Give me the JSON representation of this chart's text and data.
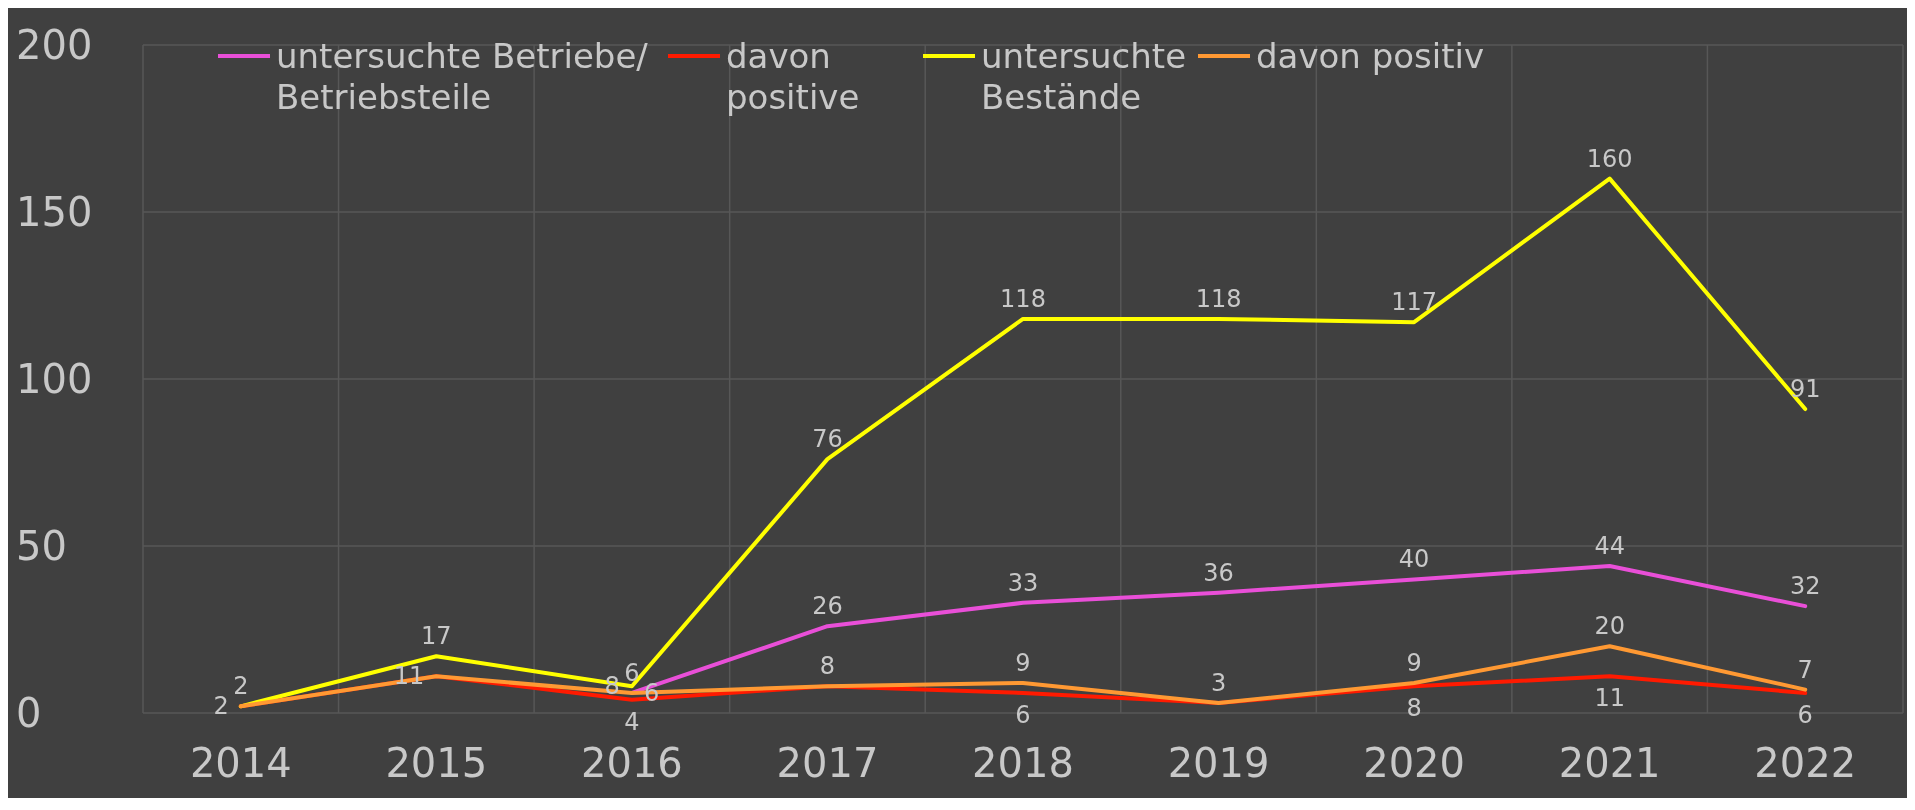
{
  "chart_data": {
    "type": "line",
    "categories": [
      "2014",
      "2015",
      "2016",
      "2017",
      "2018",
      "2019",
      "2020",
      "2021",
      "2022"
    ],
    "ylim": [
      0,
      200
    ],
    "yticks": [
      0,
      50,
      100,
      150,
      200
    ],
    "grid": true,
    "legend": "top",
    "marker": "none",
    "line_style": "solid",
    "series": [
      {
        "name": "untersuchte Betriebe/ Betriebsteile",
        "color": "#e94fd8",
        "values": [
          null,
          null,
          6,
          26,
          33,
          36,
          40,
          44,
          32
        ],
        "value_labels": [
          null,
          null,
          "6",
          "26",
          "33",
          "36",
          "40",
          "44",
          "32"
        ]
      },
      {
        "name": "davon positive",
        "color": "#ff1a00",
        "values": [
          2,
          11,
          4,
          8,
          6,
          3,
          8,
          11,
          6
        ],
        "value_labels": [
          null,
          null,
          "4",
          null,
          "6",
          null,
          "8",
          "11",
          "6"
        ]
      },
      {
        "name": "untersuchte Bestände",
        "color": "#ffff00",
        "values": [
          2,
          17,
          8,
          76,
          118,
          118,
          117,
          160,
          91
        ],
        "value_labels": [
          "2",
          "17",
          "8",
          "76",
          "118",
          "118",
          "117",
          "160",
          "91"
        ]
      },
      {
        "name": "davon positiv",
        "color": "#ff9933",
        "values": [
          2,
          11,
          6,
          8,
          9,
          3,
          9,
          20,
          7
        ],
        "value_labels": [
          "2",
          "11",
          "6",
          "8",
          "9",
          "3",
          "9",
          "20",
          "7"
        ]
      }
    ]
  }
}
